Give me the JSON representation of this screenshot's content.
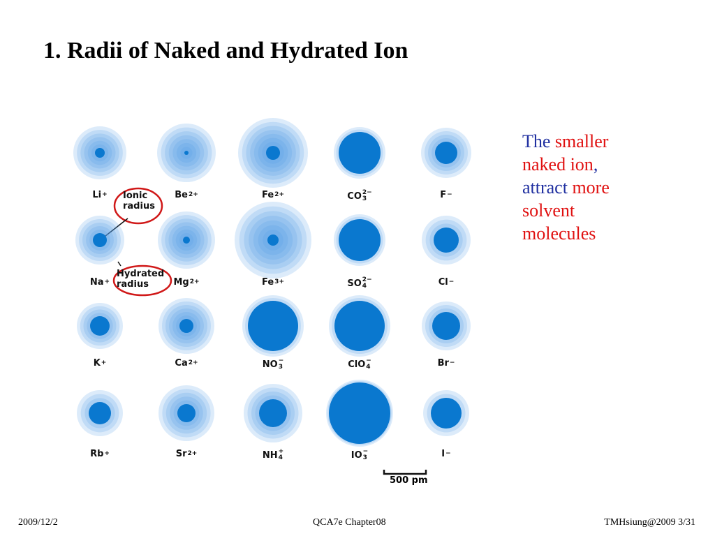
{
  "title": "1. Radii of Naked and Hydrated Ion",
  "ions": [
    {
      "base": "Li",
      "sup": "+"
    },
    {
      "base": "Be",
      "sup": "2+"
    },
    {
      "base": "Fe",
      "sup": "2+"
    },
    {
      "base": "CO",
      "sup": "2−",
      "sub": "3"
    },
    {
      "base": "F",
      "sup": "−"
    },
    {
      "base": "Na",
      "sup": "+"
    },
    {
      "base": "Mg",
      "sup": "2+"
    },
    {
      "base": "Fe",
      "sup": "3+"
    },
    {
      "base": "SO",
      "sup": "2−",
      "sub": "4"
    },
    {
      "base": "Cl",
      "sup": "−"
    },
    {
      "base": "K",
      "sup": "+"
    },
    {
      "base": "Ca",
      "sup": "2+"
    },
    {
      "base": "NO",
      "sup": "−",
      "sub": "3"
    },
    {
      "base": "ClO",
      "sup": "−",
      "sub": "4"
    },
    {
      "base": "Br",
      "sup": "−"
    },
    {
      "base": "Rb",
      "sup": "+"
    },
    {
      "base": "Sr",
      "sup": "2+"
    },
    {
      "base": "NH",
      "sup": "+",
      "sub": "4"
    },
    {
      "base": "IO",
      "sup": "−",
      "sub": "3"
    },
    {
      "base": "I",
      "sup": "−"
    }
  ],
  "annotations": {
    "ionic": [
      "Ionic",
      "radius"
    ],
    "hydrated": [
      "Hydrated",
      "radius"
    ]
  },
  "scale_bar": "500 pm",
  "statement": [
    [
      {
        "text": "The",
        "color": "#1f2fa0"
      },
      {
        "text": " smaller",
        "color": "#e01010"
      }
    ],
    [
      {
        "text": "naked ion",
        "color": "#e01010"
      },
      {
        "text": ",",
        "color": "#1f2fa0"
      }
    ],
    [
      {
        "text": "attract",
        "color": "#1f2fa0"
      },
      {
        "text": " more",
        "color": "#e01010"
      }
    ],
    [
      {
        "text": "solvent",
        "color": "#e01010"
      }
    ],
    [
      {
        "text": "molecules",
        "color": "#e01010"
      }
    ]
  ],
  "footer": {
    "date": "2009/12/2",
    "center": "QCA7e Chapter08",
    "right": "TMHsiung@2009 3/31"
  }
}
